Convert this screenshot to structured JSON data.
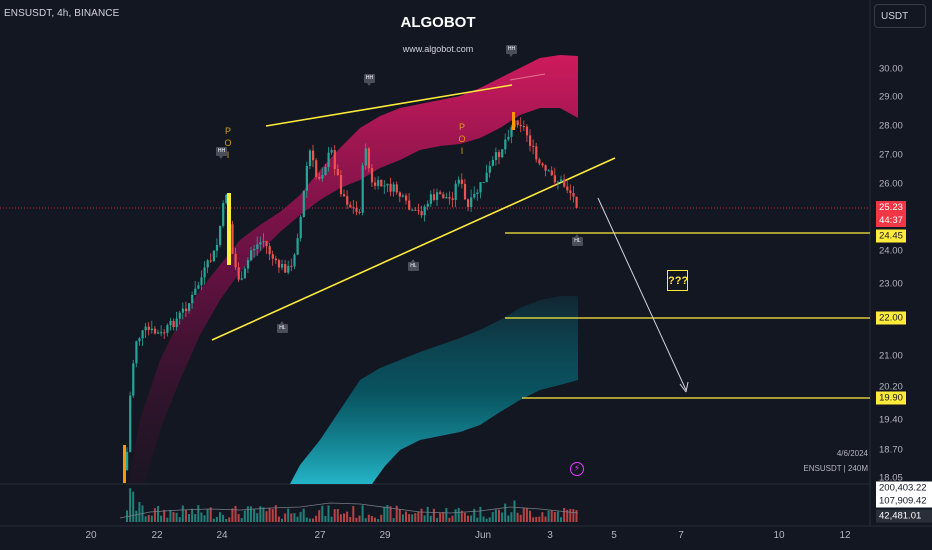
{
  "header": {
    "symbol_info": "ENSUSDT, 4h, BINANCE",
    "brand_title": "ALGOBOT",
    "brand_url": "www.algobot.com",
    "currency": "USDT"
  },
  "price_axis": {
    "labels": [
      "30.00",
      "29.00",
      "28.00",
      "27.00",
      "26.00",
      "24.00",
      "23.00",
      "21.00",
      "20.20",
      "19.40",
      "18.70",
      "18.05"
    ],
    "current_price": "25.23",
    "countdown": "44:37",
    "levels": [
      "24.45",
      "22.00",
      "19.90"
    ]
  },
  "volume_axis": {
    "labels": [
      "200,403.22",
      "107,909.42",
      "42,481.01"
    ]
  },
  "time_axis": {
    "labels": [
      "20",
      "22",
      "24",
      "27",
      "29",
      "Jun",
      "3",
      "5",
      "7",
      "10",
      "12"
    ]
  },
  "annotations": {
    "question_box": "???",
    "poi_letters": [
      "P",
      "O",
      "I"
    ],
    "markers": [
      "HH",
      "HH",
      "HH",
      "HL",
      "HL",
      "HL"
    ],
    "info_date": "4/6/2024",
    "info_symbol": "ENSUSDT | 240M"
  },
  "colors": {
    "background": "#131722",
    "up_candle": "#26a69a",
    "down_candle": "#ef5350",
    "trendline": "#ffeb3b",
    "upper_band": "#c2185b",
    "lower_band": "#26c6da",
    "price_tag": "#f23645"
  },
  "icons": [
    "flash-icon"
  ]
}
